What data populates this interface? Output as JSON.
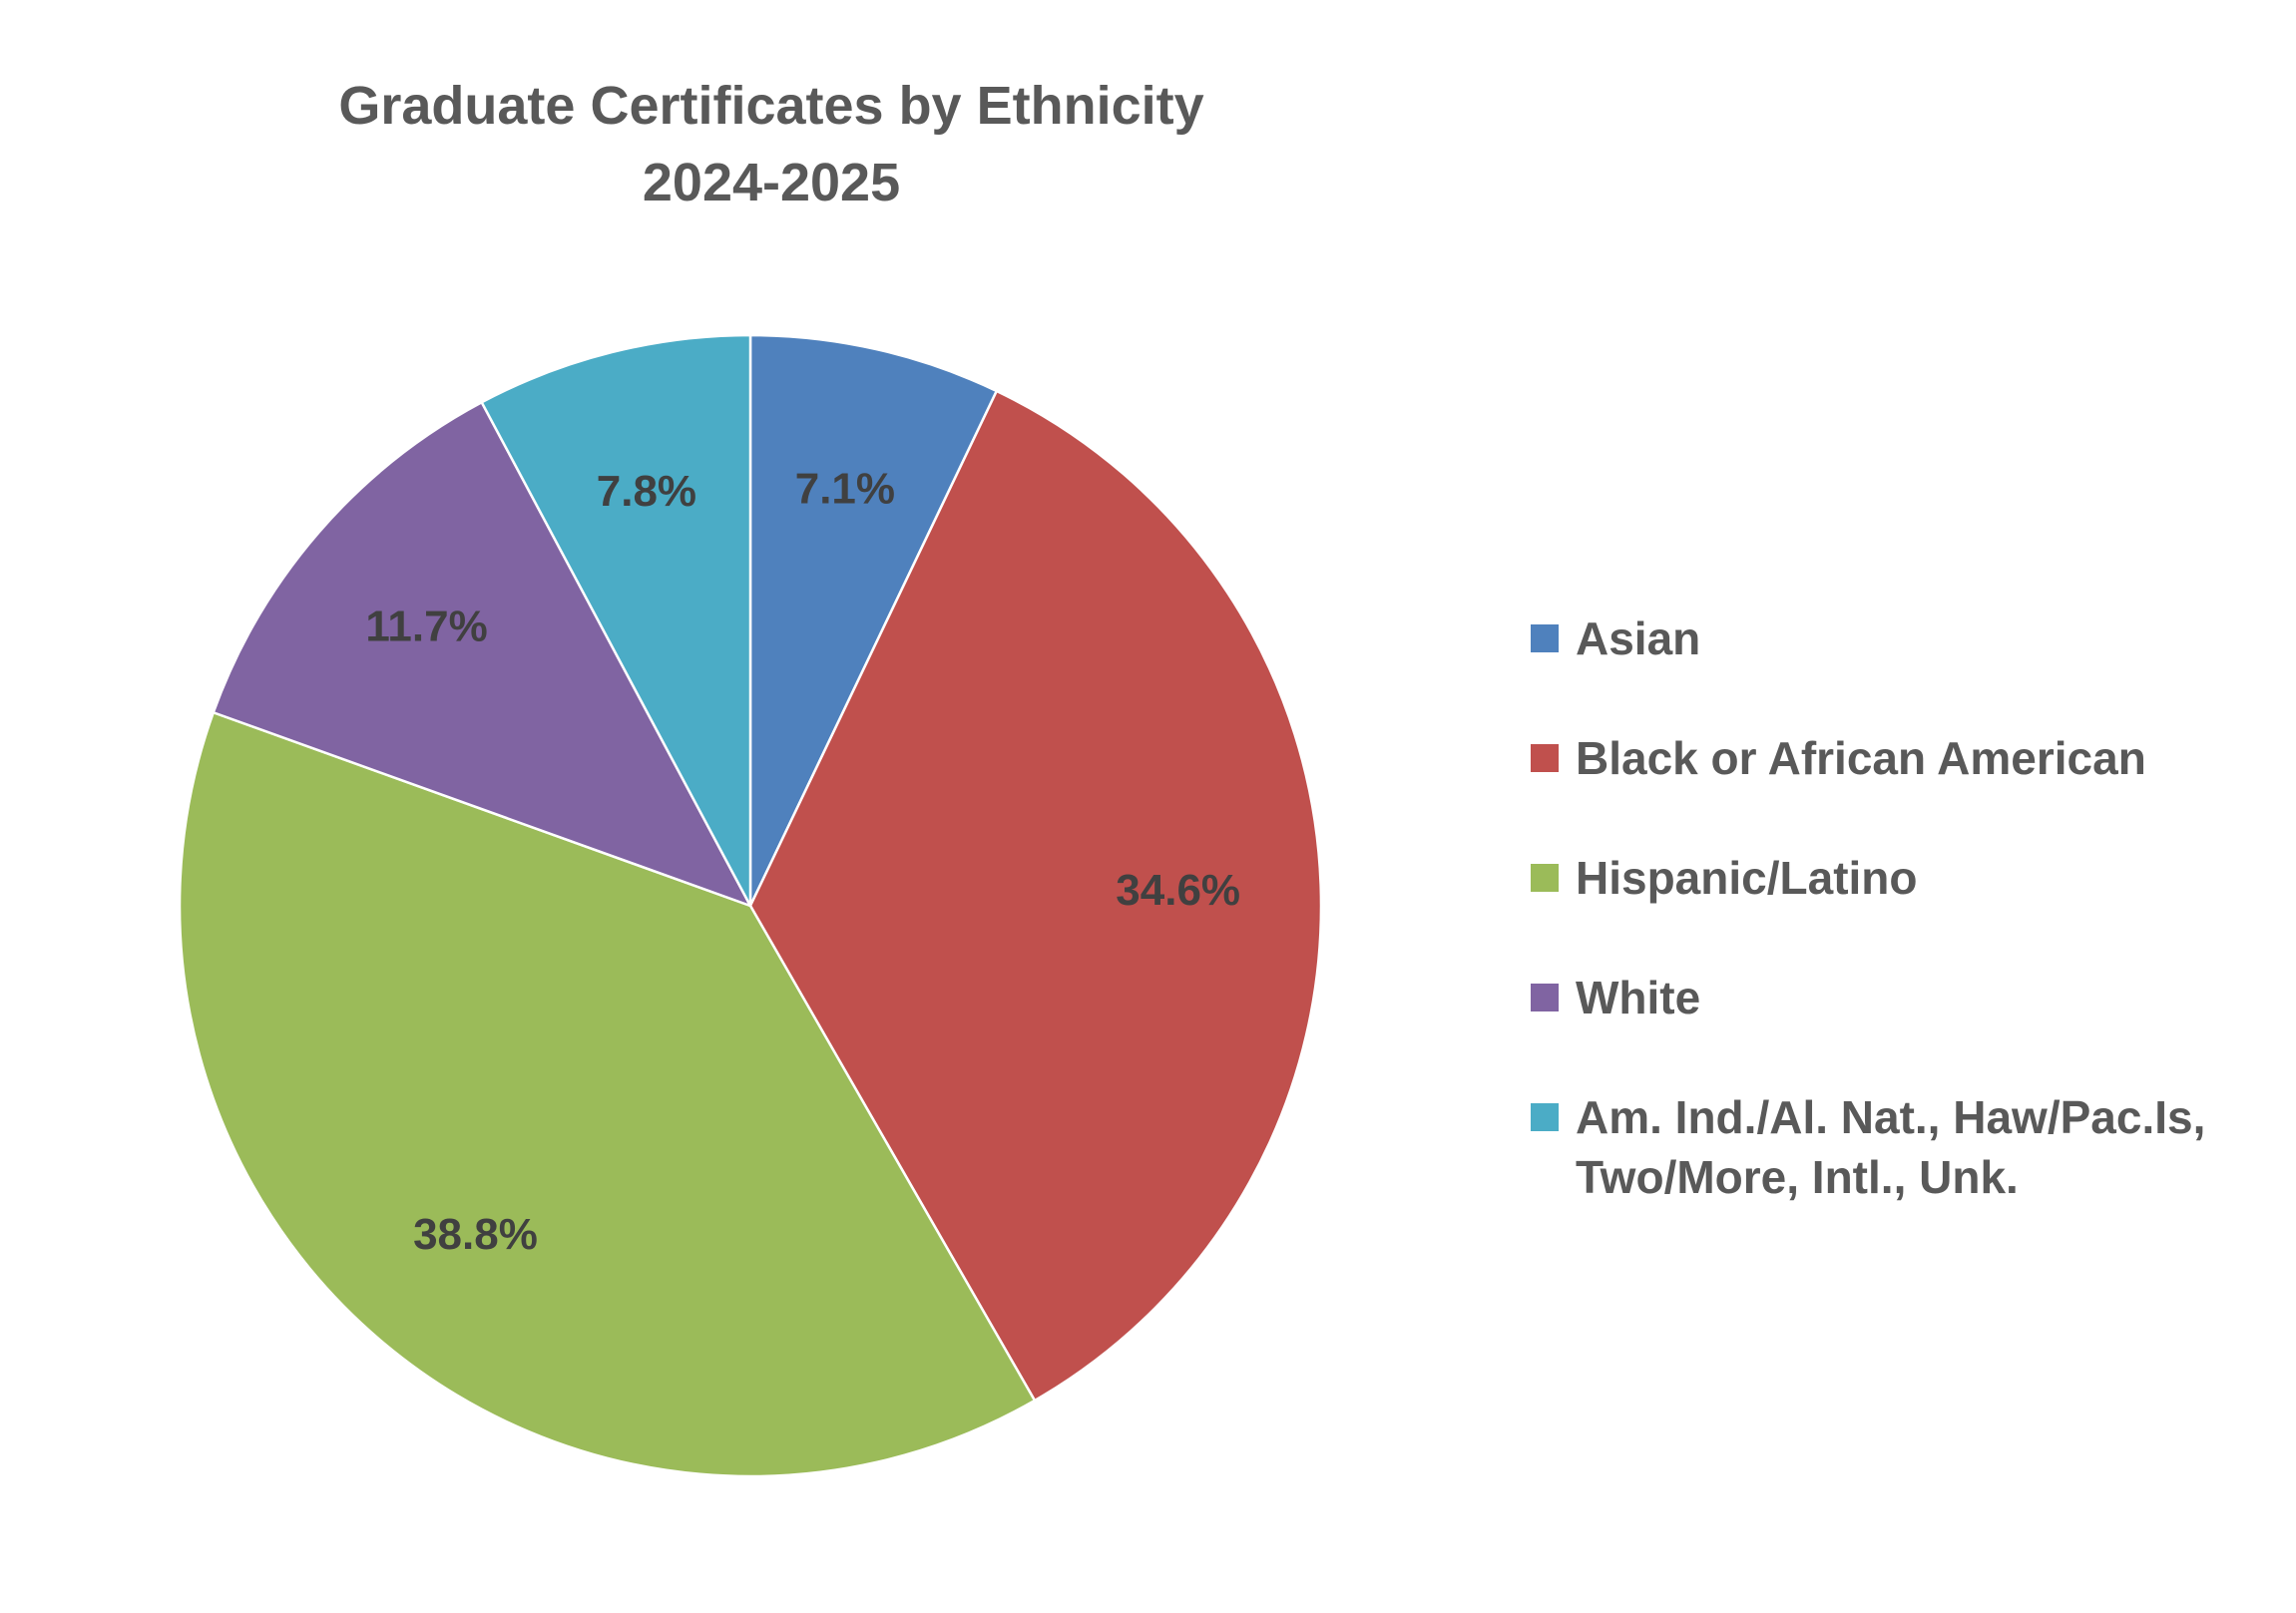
{
  "chart_data": {
    "type": "pie",
    "title": [
      "Graduate Certificates by Ethnicity",
      "2024-2025"
    ],
    "categories": [
      "Asian",
      "Black or African American",
      "Hispanic/Latino",
      "White",
      "Am. Ind./Al. Nat., Haw/Pac.Is, Two/More, Intl., Unk."
    ],
    "values": [
      7.1,
      34.6,
      38.8,
      11.7,
      7.8
    ],
    "labels": [
      "7.1%",
      "34.6%",
      "38.8%",
      "11.7%",
      "7.8%"
    ],
    "legend_lines": [
      [
        "Asian"
      ],
      [
        "Black or African American"
      ],
      [
        "Hispanic/Latino"
      ],
      [
        "White"
      ],
      [
        "Am. Ind./Al. Nat., Haw/Pac.Is,",
        "Two/More, Intl., Unk."
      ]
    ],
    "colors": [
      "#4F81BD",
      "#C0504D",
      "#9BBB59",
      "#8064A2",
      "#4BACC6"
    ],
    "start_angle_deg": 0,
    "direction": "clockwise",
    "legend_position": "right"
  }
}
